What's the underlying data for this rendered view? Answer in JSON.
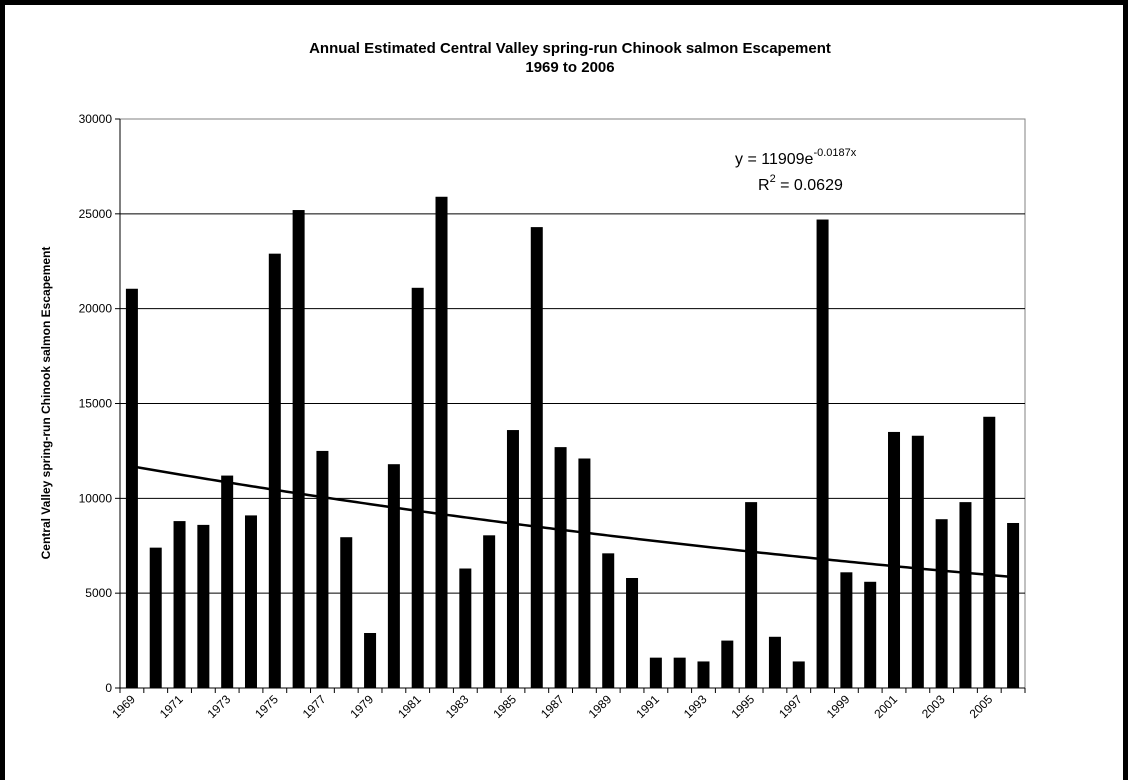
{
  "chart_data": {
    "type": "bar",
    "title": "Annual Estimated Central Valley spring-run Chinook salmon Escapement",
    "subtitle": "1969 to 2006",
    "y_label": "Central Valley spring-run Chinook salmon Escapement",
    "categories": [
      "1969",
      null,
      "1971",
      null,
      "1973",
      null,
      "1975",
      null,
      "1977",
      null,
      "1979",
      null,
      "1981",
      null,
      "1983",
      null,
      "1985",
      null,
      "1987",
      null,
      "1989",
      null,
      "1991",
      null,
      "1993",
      null,
      "1995",
      null,
      "1997",
      null,
      "1999",
      null,
      "2001",
      null,
      "2003",
      null,
      "2005",
      null
    ],
    "values": [
      21050,
      7400,
      8800,
      8600,
      11200,
      9100,
      22900,
      25200,
      12500,
      7950,
      2900,
      11800,
      21100,
      25900,
      6300,
      8050,
      13600,
      24300,
      12700,
      12100,
      7100,
      5800,
      1600,
      1600,
      1400,
      2500,
      9800,
      2700,
      1400,
      24700,
      6100,
      5600,
      13500,
      13300,
      8900,
      9800,
      14300,
      8700
    ],
    "color": "#000000",
    "ylim": [
      0,
      30000
    ],
    "yticks": [
      0,
      5000,
      10000,
      15000,
      20000,
      25000,
      30000
    ],
    "grid": true,
    "trendline": {
      "a": 11909,
      "b": -0.0187,
      "equation": "y = 11909e",
      "exponent": "-0.0187x",
      "r2_symbol": "R",
      "r2_power": "2",
      "r2_value": " = 0.0629"
    }
  }
}
